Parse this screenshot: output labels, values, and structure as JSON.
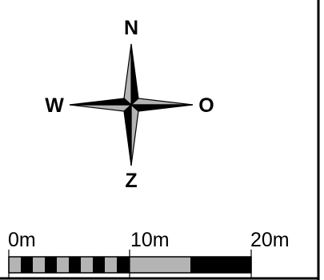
{
  "compass": {
    "north": "N",
    "west": "W",
    "east": "O",
    "south": "Z"
  },
  "scale_bar": {
    "labels": [
      "0m",
      "10m",
      "20m"
    ]
  },
  "colors": {
    "ink": "#000000",
    "light": "#b4b4b4",
    "paper": "#ffffff"
  }
}
